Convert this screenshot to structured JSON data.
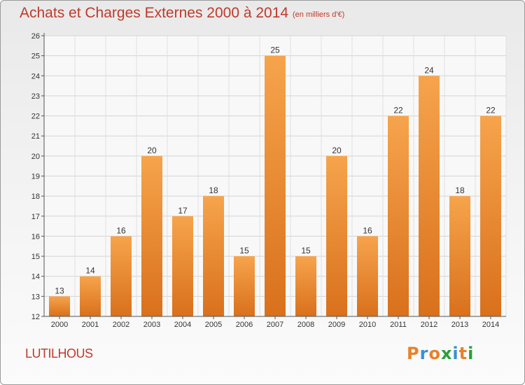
{
  "header": {
    "title": "Achats et Charges Externes 2000 à 2014",
    "subtitle": "(en milliers d'€)"
  },
  "footer": {
    "commune": "LUTILHOUS",
    "logo": "Proxiti"
  },
  "colors": {
    "bar_top": "#f6a44c",
    "bar_bottom": "#d9701c",
    "title": "#c0392b"
  },
  "chart_data": {
    "type": "bar",
    "title": "Achats et Charges Externes 2000 à 2014",
    "subtitle": "(en milliers d'€)",
    "categories": [
      "2000",
      "2001",
      "2002",
      "2003",
      "2004",
      "2005",
      "2006",
      "2007",
      "2008",
      "2009",
      "2010",
      "2011",
      "2012",
      "2013",
      "2014"
    ],
    "values": [
      13,
      14,
      16,
      20,
      17,
      18,
      15,
      25,
      15,
      20,
      16,
      22,
      24,
      18,
      22
    ],
    "ylim": [
      12,
      26
    ],
    "yticks": [
      12,
      13,
      14,
      15,
      16,
      17,
      18,
      19,
      20,
      21,
      22,
      23,
      24,
      25,
      26
    ],
    "grid": true,
    "data_labels": true
  }
}
